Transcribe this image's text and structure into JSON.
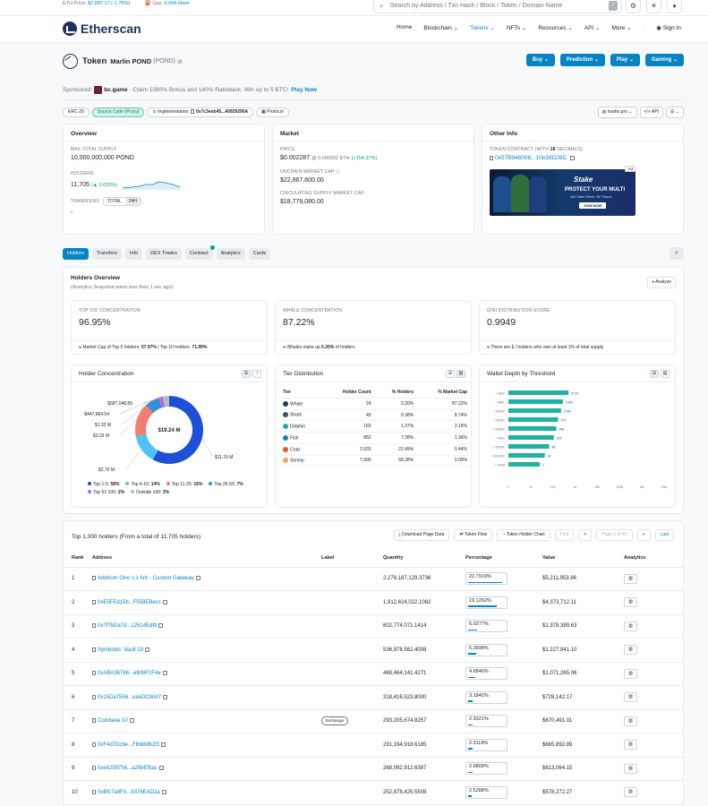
{
  "topbar": {
    "eth_price_label": "ETH Price:",
    "eth_price_value": "$2,687.17 (-1.76%)",
    "gas_label": "Gas:",
    "gas_value": "0.064 Gwei",
    "search_placeholder": "Search by Address / Txn Hash / Block / Token / Domain Name",
    "search_shortcut": "/"
  },
  "navbar": {
    "logo": "Etherscan",
    "items": [
      "Home",
      "Blockchain",
      "Tokens",
      "NFTs",
      "Resources",
      "API",
      "More",
      "Sign In"
    ]
  },
  "token": {
    "kind": "Token",
    "name": "Marlin POND",
    "symbol": "(POND)"
  },
  "action_buttons": [
    "Buy",
    "Prediction",
    "Play",
    "Gaming"
  ],
  "sponsored": {
    "label": "Sponsored:",
    "brand": "bc.game",
    "text": "- Claim 1080% Bonus and 140% Rakeback, Win up to 5 BTC!",
    "cta": "Play Now"
  },
  "pills": [
    "ERC-20",
    "Source Code (Proxy)",
    "Implementation:",
    "0x7c3eeb45...40929290A",
    "Protocol"
  ],
  "right_pills": [
    "marlin.pro",
    "API",
    "☰"
  ],
  "overview": {
    "title": "Overview",
    "max_supply_label": "MAX TOTAL SUPPLY",
    "max_supply_value": "10,000,000,000 POND",
    "holders_label": "HOLDERS",
    "holders_value": "11,705",
    "holders_change": "(▲ 0.026%)",
    "transfers_label": "TRANSFERS",
    "transfers_value": "-",
    "transfers_tabs": [
      "TOTAL",
      "24H"
    ]
  },
  "market": {
    "title": "Market",
    "price_label": "PRICE",
    "price_value": "$0.002287",
    "price_eth": "@ 0.000001 ETH",
    "price_change": "(+154.37%)",
    "onchain_label": "ONCHAIN MARKET CAP",
    "onchain_value": "$22,867,600.00",
    "circ_label": "CIRCULATING SUPPLY MARKET CAP",
    "circ_value": "$18,779,080.00"
  },
  "other_info": {
    "title": "Other Info",
    "contract_label": "TOKEN CONTRACT (WITH",
    "contract_decimals": "18",
    "contract_label_end": "DECIMALS)",
    "contract_value": "0x57B946008...10e58D26C",
    "ad_badge": "Ad",
    "ad_brand": "Stake",
    "ad_headline": "PROTECT YOUR MULTI",
    "ad_sub": "with Stake Shield • BF Payout",
    "ad_cta": "JOIN NOW"
  },
  "tabs": [
    "Holders",
    "Transfers",
    "Info",
    "DEX Trades",
    "Contract",
    "Analytics",
    "Cards"
  ],
  "holders_overview": {
    "title": "Holders Overview",
    "subtitle": "(Analytics Snapshot taken less than 1 sec ago)",
    "analyze": "Analyze",
    "stats": [
      {
        "label": "TOP 100 CONCENTRATION",
        "value": "96.95%",
        "foot_pre": "Market Cap of Top 5 holders:",
        "foot_a": "57.97%",
        "foot_mid": "| Top 10 holders:",
        "foot_b": "71.99%"
      },
      {
        "label": "WHALE CONCENTRATION",
        "value": "87.22%",
        "foot_pre": "Whales make up",
        "foot_a": "0.20%",
        "foot_mid": "of holders",
        "foot_b": ""
      },
      {
        "label": "GINI DISTRIBUTION SCORE",
        "value": "0.9949",
        "foot_pre": "There are",
        "foot_a": "1",
        "foot_mid": "/ holders who own at least 1% of total supply",
        "foot_b": ""
      }
    ]
  },
  "holder_concentration": {
    "title": "Holder Concentration",
    "center_label": "$19.24 M",
    "slices": [
      {
        "label": "$11.15 M",
        "value": 58,
        "color": "#1f4fd8"
      },
      {
        "label": "$2.70 M",
        "value": 14,
        "color": "#4fc3f7"
      },
      {
        "label": "$3.03 M",
        "value": 16,
        "color": "#f07f6e"
      },
      {
        "label": "$1.32 M",
        "value": 7,
        "color": "#3a8ed6"
      },
      {
        "label": "$447,964.54",
        "value": 2,
        "color": "#b967e0"
      },
      {
        "label": "$587,048.86",
        "value": 3,
        "color": "#b0bec5"
      }
    ],
    "legend": [
      {
        "name": "Top 1-5:",
        "pct": "58%",
        "color": "#1f4fd8"
      },
      {
        "name": "Top 6-10:",
        "pct": "14%",
        "color": "#4fc3f7"
      },
      {
        "name": "Top 11-25:",
        "pct": "16%",
        "color": "#f07f6e"
      },
      {
        "name": "Top 26-50:",
        "pct": "7%",
        "color": "#3a8ed6"
      },
      {
        "name": "Top 51-100:",
        "pct": "2%",
        "color": "#b967e0"
      },
      {
        "name": "Outside 100:",
        "pct": "3%",
        "color": "#b0bec5"
      }
    ]
  },
  "tier_distribution": {
    "title": "Tier Distribution",
    "headers": [
      "Tier",
      "Holder Count",
      "% Holders",
      "% Market Cap"
    ],
    "rows": [
      {
        "tier": "Whale",
        "count": "24",
        "holders": "0.20%",
        "cap": "87.22%",
        "color": "#1d3a6e"
      },
      {
        "tier": "Shark",
        "count": "45",
        "holders": "0.38%",
        "cap": "8.74%",
        "color": "#495057"
      },
      {
        "tier": "Dolphin",
        "count": "160",
        "holders": "1.37%",
        "cap": "2.15%",
        "color": "#20a0c0"
      },
      {
        "tier": "Fish",
        "count": "852",
        "holders": "7.28%",
        "cap": "1.36%",
        "color": "#0784c3"
      },
      {
        "tier": "Crab",
        "count": "2,633",
        "holders": "22.49%",
        "cap": "0.44%",
        "color": "#e8572c"
      },
      {
        "tier": "Shrimp",
        "count": "7,995",
        "holders": "68.28%",
        "cap": "0.09%",
        "color": "#f4a261"
      }
    ]
  },
  "wallet_depth": {
    "title": "Wallet Depth by Threshold",
    "chart_data": {
      "type": "bar",
      "orientation": "horizontal",
      "xscale": "log",
      "categories": [
        "> $1K",
        "> $5K",
        "> $10K",
        "> $25K",
        "> $50K",
        "> $1K",
        "> $10K",
        "> $100K",
        "> $1M"
      ],
      "values": [
        571,
        159,
        108,
        57,
        38,
        22,
        8,
        3,
        1
      ],
      "value_labels": [
        "571K",
        "159K",
        "108K",
        "57K",
        "38K",
        "22K",
        "8K",
        "3K",
        "1"
      ],
      "x_ticks": [
        "1",
        "10",
        "100",
        "1K",
        "10K",
        "100K",
        "1M",
        "10M"
      ],
      "title": "Wallet Depth by Threshold",
      "bar_color": "#20b2a0"
    }
  },
  "holders_table": {
    "title": "Top 1,000 holders (From a total of 11,705 holders)",
    "buttons": [
      "Download Page Data",
      "Token Flow",
      "Token Holder Chart"
    ],
    "pager": {
      "first": "First",
      "prev": "<",
      "page": "Page 1 of 40",
      "next": ">",
      "last": "Last"
    },
    "headers": [
      "Rank",
      "Address",
      "Label",
      "Quantity",
      "Percentage",
      "Value",
      "Analytics"
    ],
    "rows": [
      {
        "rank": "1",
        "address": "Arbitrum One: L1 Arb - Custom Gateway",
        "contract": true,
        "label": "",
        "qty": "2,279,187,129.3736",
        "pct": "22.7919%",
        "pct_num": 22.7919,
        "value": "$5,211,953.96"
      },
      {
        "rank": "2",
        "address": "0xE5FEd15b...F559EBecc",
        "contract": true,
        "label": "",
        "qty": "1,912,624,022.1082",
        "pct": "19.1262%",
        "pct_num": 19.1262,
        "value": "$4,373,712.11"
      },
      {
        "rank": "3",
        "address": "0x7f75Da7d...12514Edf9",
        "contract": false,
        "label": "",
        "qty": "602,774,071.1414",
        "pct": "6.0277%",
        "pct_num": 6.0277,
        "value": "$1,378,399.63"
      },
      {
        "rank": "4",
        "address": "Symbiotic: Vault 19",
        "contract": true,
        "label": "",
        "qty": "536,978,562.4008",
        "pct": "5.3698%",
        "pct_num": 5.3698,
        "value": "$1,227,941.10"
      },
      {
        "rank": "5",
        "address": "0xABA36766...e808F2F4e",
        "contract": false,
        "label": "",
        "qty": "468,464,141.4271",
        "pct": "4.6846%",
        "pct_num": 4.6846,
        "value": "$1,071,265.06"
      },
      {
        "rank": "6",
        "address": "0x15Da7556...eaeDCb0d7",
        "contract": false,
        "label": "",
        "qty": "318,416,523.8000",
        "pct": "3.1842%",
        "pct_num": 3.1842,
        "value": "$728,142.17"
      },
      {
        "rank": "7",
        "address": "Coinbase 10",
        "contract": true,
        "label": "Exchange",
        "qty": "293,205,674.8257",
        "pct": "2.9321%",
        "pct_num": 2.9321,
        "value": "$670,491.01"
      },
      {
        "rank": "8",
        "address": "0xF4d7Dc9e...FB689B2f3",
        "contract": false,
        "label": "",
        "qty": "291,194,918.6185",
        "pct": "2.9119%",
        "pct_num": 2.9119,
        "value": "$665,892.89"
      },
      {
        "rank": "9",
        "address": "0xe5259756...a25bEf5ac",
        "contract": false,
        "label": "",
        "qty": "268,092,912.6387",
        "pct": "2.6809%",
        "pct_num": 2.6809,
        "value": "$613,064.15"
      },
      {
        "rank": "10",
        "address": "0xBfc7a9FA...9376EAD2a",
        "contract": false,
        "label": "",
        "qty": "252,878,425.5508",
        "pct": "2.5288%",
        "pct_num": 2.5288,
        "value": "$578,272.27"
      }
    ]
  }
}
